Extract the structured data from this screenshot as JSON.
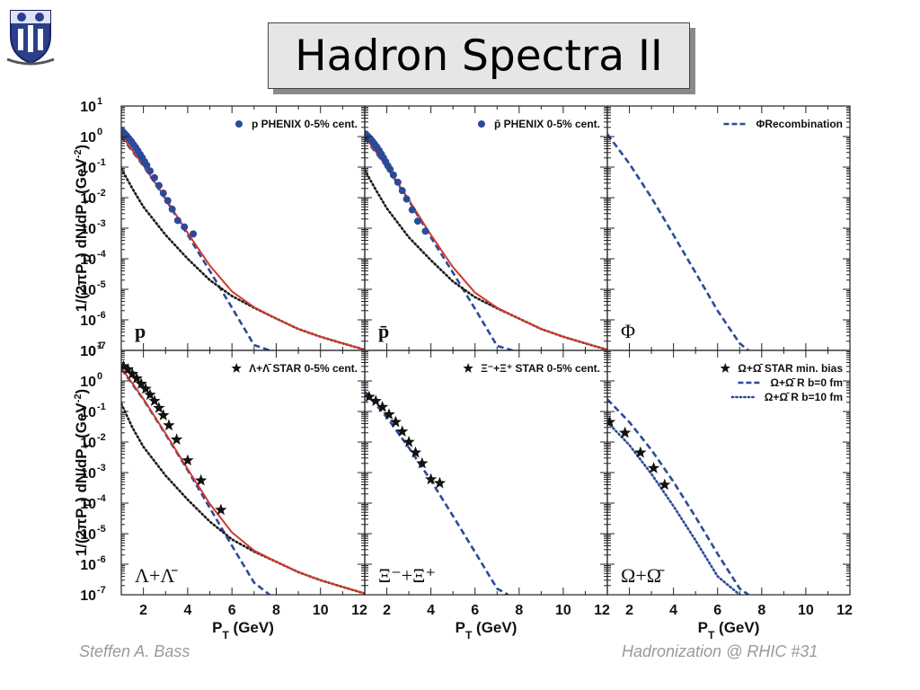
{
  "header": {
    "title": "Hadron Spectra II"
  },
  "footer": {
    "left": "Steffen A. Bass",
    "right": "Hadronization @ RHIC  #31"
  },
  "colors": {
    "data_points": "#2b4a9a",
    "recombination_dashed": "#2b4a9a",
    "fragmentation_dotted": "#1a1a1a",
    "total_fit": "#d03a2a",
    "markers_star": "#111111"
  },
  "chart_data": {
    "type": "scatter",
    "grid": false,
    "x_axis": {
      "label": "P_T (GeV)",
      "lim": [
        1,
        12
      ],
      "ticks": [
        2,
        4,
        6,
        8,
        10,
        12
      ]
    },
    "y_axis": {
      "label": "1/(2πP_T) dN/dP_T (GeV^-2)",
      "scale": "log",
      "lim": [
        1e-07,
        10
      ],
      "tick_labels": [
        "10^1",
        "10^0",
        "10^-1",
        "10^-2",
        "10^-3",
        "10^-4",
        "10^-5",
        "10^-6",
        "10^-7"
      ]
    },
    "panels": [
      {
        "label": "p",
        "legend": [
          {
            "symbol": "circle",
            "text": "p PHENIX 0-5% cent."
          }
        ],
        "series": [
          {
            "style": "points",
            "marker": "circle",
            "x": [
              1.05,
              1.15,
              1.25,
              1.35,
              1.45,
              1.55,
              1.65,
              1.75,
              1.85,
              1.95,
              2.05,
              2.15,
              2.3,
              2.5,
              2.7,
              2.9,
              3.1,
              3.3,
              3.55,
              3.85,
              4.25
            ],
            "y": [
              1.5,
              1.25,
              1.05,
              0.85,
              0.7,
              0.55,
              0.44,
              0.34,
              0.26,
              0.2,
              0.15,
              0.115,
              0.075,
              0.045,
              0.025,
              0.014,
              0.008,
              0.0042,
              0.0018,
              0.0011,
              0.00065
            ]
          },
          {
            "style": "dashed",
            "x": [
              1,
              2,
              3,
              4,
              5,
              6,
              7,
              7.7
            ],
            "y": [
              1.0,
              0.11,
              0.009,
              0.0006,
              4e-05,
              2.5e-06,
              1.5e-07,
              1e-07
            ]
          },
          {
            "style": "dotted",
            "x": [
              1,
              1.5,
              2,
              3,
              4,
              5,
              6,
              7,
              8,
              9,
              10,
              11,
              12
            ],
            "y": [
              0.09,
              0.02,
              0.005,
              0.0006,
              0.0001,
              2e-05,
              6e-06,
              2.5e-06,
              1.1e-06,
              5e-07,
              2.8e-07,
              1.7e-07,
              1.05e-07
            ]
          },
          {
            "style": "solid",
            "x": [
              1,
              2,
              3,
              4,
              5,
              6,
              7,
              8,
              9,
              10,
              11,
              12
            ],
            "y": [
              1.1,
              0.115,
              0.0095,
              0.0007,
              6e-05,
              8.5e-06,
              2.6e-06,
              1.1e-06,
              5e-07,
              2.8e-07,
              1.7e-07,
              1.05e-07
            ]
          }
        ]
      },
      {
        "label": "p̄",
        "legend": [
          {
            "symbol": "circle",
            "text": "p̄ PHENIX 0-5% cent."
          }
        ],
        "series": [
          {
            "style": "points",
            "marker": "circle",
            "x": [
              1.05,
              1.15,
              1.25,
              1.35,
              1.45,
              1.55,
              1.65,
              1.75,
              1.85,
              1.95,
              2.05,
              2.15,
              2.3,
              2.5,
              2.7,
              2.9,
              3.15,
              3.4,
              3.75
            ],
            "y": [
              1.2,
              1.0,
              0.85,
              0.7,
              0.56,
              0.45,
              0.35,
              0.27,
              0.2,
              0.15,
              0.11,
              0.085,
              0.055,
              0.032,
              0.017,
              0.009,
              0.004,
              0.0017,
              0.0008
            ]
          },
          {
            "style": "dashed",
            "x": [
              1,
              2,
              3,
              4,
              5,
              6,
              7,
              7.7
            ],
            "y": [
              0.9,
              0.1,
              0.008,
              0.0005,
              3.5e-05,
              2.3e-06,
              1.4e-07,
              1e-07
            ]
          },
          {
            "style": "dotted",
            "x": [
              1,
              1.5,
              2,
              3,
              4,
              5,
              6,
              7,
              8,
              9,
              10,
              11,
              12
            ],
            "y": [
              0.08,
              0.018,
              0.0045,
              0.0005,
              9e-05,
              1.8e-05,
              5.5e-06,
              2.4e-06,
              1.1e-06,
              5e-07,
              2.8e-07,
              1.7e-07,
              1.05e-07
            ]
          },
          {
            "style": "solid",
            "x": [
              1,
              2,
              3,
              4,
              5,
              6,
              7,
              8,
              9,
              10,
              11,
              12
            ],
            "y": [
              1.0,
              0.105,
              0.0085,
              0.0006,
              5.3e-05,
              7.8e-06,
              2.5e-06,
              1.1e-06,
              5e-07,
              2.8e-07,
              1.7e-07,
              1.05e-07
            ]
          }
        ]
      },
      {
        "label": "Φ",
        "legend": [
          {
            "symbol": "dashed",
            "text": "ΦRecombination"
          }
        ],
        "series": [
          {
            "style": "dashed",
            "x": [
              1,
              2,
              3,
              4,
              5,
              6,
              7,
              7.4
            ],
            "y": [
              1.2,
              0.13,
              0.01,
              0.0006,
              3.5e-05,
              2e-06,
              1.7e-07,
              1e-07
            ]
          }
        ]
      },
      {
        "label": "Λ+Λ̄",
        "legend": [
          {
            "symbol": "star",
            "text": "Λ+Λ̄ STAR 0-5% cent."
          }
        ],
        "series": [
          {
            "style": "points",
            "marker": "star",
            "x": [
              1.1,
              1.3,
              1.5,
              1.7,
              1.9,
              2.1,
              2.3,
              2.5,
              2.7,
              2.9,
              3.15,
              3.5,
              4.0,
              4.6,
              5.5
            ],
            "y": [
              3.0,
              2.4,
              1.7,
              1.2,
              0.8,
              0.55,
              0.35,
              0.22,
              0.13,
              0.075,
              0.035,
              0.012,
              0.0025,
              0.00055,
              6e-05
            ]
          },
          {
            "style": "dashed",
            "x": [
              1,
              2,
              3,
              4,
              5,
              6,
              7,
              7.7
            ],
            "y": [
              2.5,
              0.25,
              0.018,
              0.0012,
              7e-05,
              4e-06,
              2.5e-07,
              1e-07
            ]
          },
          {
            "style": "dotted",
            "x": [
              1,
              1.5,
              2,
              3,
              4,
              5,
              6,
              7,
              8,
              9,
              10,
              11,
              12
            ],
            "y": [
              0.18,
              0.03,
              0.007,
              0.0008,
              0.00013,
              2.5e-05,
              6.5e-06,
              2.6e-06,
              1.2e-06,
              5.5e-07,
              3e-07,
              1.8e-07,
              1.1e-07
            ]
          },
          {
            "style": "solid",
            "x": [
              1,
              2,
              3,
              4,
              5,
              6,
              7,
              8,
              9,
              10,
              11,
              12
            ],
            "y": [
              2.7,
              0.26,
              0.019,
              0.0013,
              9.5e-05,
              1.1e-05,
              2.8e-06,
              1.2e-06,
              5.5e-07,
              3e-07,
              1.8e-07,
              1.1e-07
            ]
          }
        ]
      },
      {
        "label": "Ξ⁻+Ξ⁺",
        "legend": [
          {
            "symbol": "star",
            "text": "Ξ⁻+Ξ⁺ STAR 0-5% cent."
          }
        ],
        "series": [
          {
            "style": "points",
            "marker": "star",
            "x": [
              1.2,
              1.5,
              1.8,
              2.1,
              2.4,
              2.7,
              3.0,
              3.3,
              3.6,
              4.0,
              4.4
            ],
            "y": [
              0.3,
              0.22,
              0.14,
              0.08,
              0.045,
              0.022,
              0.01,
              0.0045,
              0.002,
              0.0006,
              0.00045
            ]
          },
          {
            "style": "dashed",
            "x": [
              1,
              2,
              3,
              4,
              5,
              6,
              7,
              7.5
            ],
            "y": [
              0.45,
              0.065,
              0.0065,
              0.00055,
              3.8e-05,
              2.5e-06,
              1.6e-07,
              1e-07
            ]
          }
        ]
      },
      {
        "label": "Ω+Ω̄",
        "legend": [
          {
            "symbol": "star",
            "text": "Ω+Ω̄ STAR min. bias"
          },
          {
            "symbol": "dashed",
            "text": "Ω+Ω̄ R b=0 fm"
          },
          {
            "symbol": "dotted",
            "text": "Ω+Ω̄ R b=10 fm"
          }
        ],
        "series": [
          {
            "style": "points",
            "marker": "star",
            "x": [
              1.1,
              1.8,
              2.5,
              3.1,
              3.6
            ],
            "y": [
              0.045,
              0.02,
              0.0045,
              0.0014,
              0.0004
            ]
          },
          {
            "style": "dashed",
            "x": [
              1,
              2,
              3,
              4,
              5,
              6,
              7,
              7.4
            ],
            "y": [
              0.25,
              0.045,
              0.0055,
              0.0005,
              3.5e-05,
              2.2e-06,
              1.6e-07,
              1e-07
            ]
          },
          {
            "style": "dotted",
            "x": [
              1,
              2,
              3,
              4,
              5,
              6,
              7
            ],
            "y": [
              0.045,
              0.008,
              0.0009,
              8e-05,
              6e-06,
              4e-07,
              1e-07
            ]
          }
        ]
      }
    ]
  }
}
